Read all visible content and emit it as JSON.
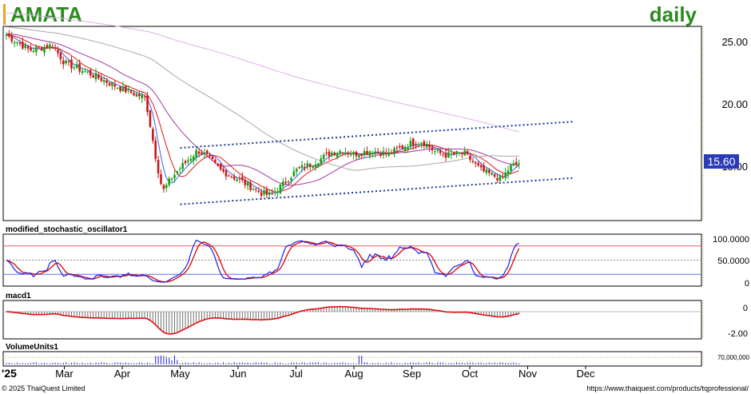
{
  "chart_data": {
    "type": "candlestick",
    "symbol": "AMATA",
    "interval": "daily",
    "last_price": "15.60",
    "price_axis": {
      "ylim": [
        11.0,
        26.5
      ],
      "ticks": [
        "25.00",
        "20.00",
        "15.00"
      ],
      "scale": "linear",
      "grid": false
    },
    "x_axis": {
      "year_label": "'25",
      "months": [
        "Mar",
        "Apr",
        "May",
        "Jun",
        "Jul",
        "Aug",
        "Sep",
        "Oct",
        "Nov",
        "Dec"
      ]
    },
    "price_anchors": [
      {
        "month": 0.0,
        "value": 25.8
      },
      {
        "month": 0.4,
        "value": 24.6
      },
      {
        "month": 0.8,
        "value": 25.0
      },
      {
        "month": 1.0,
        "value": 23.6
      },
      {
        "month": 1.5,
        "value": 22.6
      },
      {
        "month": 2.0,
        "value": 21.5
      },
      {
        "month": 2.4,
        "value": 20.8
      },
      {
        "month": 2.6,
        "value": 15.5
      },
      {
        "month": 2.7,
        "value": 13.3
      },
      {
        "month": 2.85,
        "value": 14.4
      },
      {
        "month": 3.0,
        "value": 15.2
      },
      {
        "month": 3.3,
        "value": 16.6
      },
      {
        "month": 3.45,
        "value": 16.2
      },
      {
        "month": 3.7,
        "value": 15.0
      },
      {
        "month": 4.0,
        "value": 14.3
      },
      {
        "month": 4.4,
        "value": 13.2
      },
      {
        "month": 4.55,
        "value": 13.0
      },
      {
        "month": 4.8,
        "value": 14.0
      },
      {
        "month": 5.0,
        "value": 15.0
      },
      {
        "month": 5.3,
        "value": 15.6
      },
      {
        "month": 5.6,
        "value": 16.4
      },
      {
        "month": 5.8,
        "value": 16.6
      },
      {
        "month": 6.0,
        "value": 16.3
      },
      {
        "month": 6.3,
        "value": 16.6
      },
      {
        "month": 6.6,
        "value": 16.3
      },
      {
        "month": 6.8,
        "value": 16.8
      },
      {
        "month": 7.0,
        "value": 17.2
      },
      {
        "month": 7.2,
        "value": 17.3
      },
      {
        "month": 7.4,
        "value": 16.5
      },
      {
        "month": 7.6,
        "value": 16.2
      },
      {
        "month": 7.9,
        "value": 16.4
      },
      {
        "month": 8.2,
        "value": 15.0
      },
      {
        "month": 8.4,
        "value": 14.6
      },
      {
        "month": 8.55,
        "value": 14.3
      },
      {
        "month": 8.7,
        "value": 15.3
      },
      {
        "month": 8.85,
        "value": 15.6
      }
    ],
    "moving_averages": [
      {
        "color": "#4060f0",
        "period": 5
      },
      {
        "color": "#e01818",
        "period": 10
      },
      {
        "color": "#a03aa0",
        "period": 25
      },
      {
        "color": "#a8a8a8",
        "period": 75
      },
      {
        "color": "#e0b0e8",
        "period": 200
      }
    ],
    "channel": {
      "upper": [
        {
          "month": 3.0,
          "value": 16.8
        },
        {
          "month": 9.8,
          "value": 18.9
        }
      ],
      "lower": [
        {
          "month": 3.0,
          "value": 12.3
        },
        {
          "month": 9.8,
          "value": 14.4
        }
      ],
      "style": "dotted",
      "color": "#1a3a9a"
    },
    "stochastic": {
      "label": "modified_stochastic_oscillator1",
      "ylim": [
        0,
        100
      ],
      "ticks": [
        "100.0000",
        "50.0000",
        "0"
      ],
      "levels": [
        {
          "value": 80,
          "color": "#e06060"
        },
        {
          "value": 50,
          "color": "#888888"
        },
        {
          "value": 20,
          "color": "#6070e0"
        }
      ],
      "k_color": "#2020e0",
      "d_color": "#e01010"
    },
    "macd": {
      "label": "macd1",
      "ylim": [
        -2.6,
        0.9
      ],
      "ticks": [
        "0",
        "-2.00"
      ],
      "line_color": "#e01010",
      "histogram_color": "#707070"
    },
    "volume": {
      "label": "VolumeUnits1",
      "tick": "70,000,000",
      "tick_value": 70000000,
      "ylim": [
        0,
        110000000
      ],
      "color": "#2020e0"
    }
  },
  "footer": {
    "copyright": "© 2025 ThaiQuest Limited",
    "url": "https://www.thaiquest.com/products/tqprofessional/"
  }
}
